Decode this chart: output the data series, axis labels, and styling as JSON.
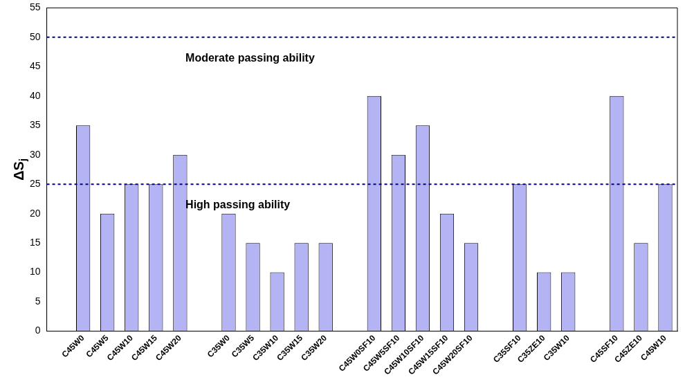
{
  "chart_data": {
    "type": "bar",
    "ylabel": "ΔS$_{j}$",
    "categories": [
      null,
      "C45W0",
      "C45W5",
      "C45W10",
      "C45W15",
      "C45W20",
      null,
      "C35W0",
      "C35W5",
      "C35W10",
      "C35W15",
      "C35W20",
      null,
      "C45W0SF10",
      "C45W5SF10",
      "C45W10SF10",
      "C45W15SF10",
      "C45W20SF10",
      null,
      "C35SF10",
      "C35ZE10",
      "C35W10",
      null,
      "C45SF10",
      "C45ZE10",
      "C45W10"
    ],
    "values": [
      null,
      35,
      20,
      25,
      25,
      30,
      null,
      20,
      15,
      10,
      15,
      15,
      null,
      40,
      30,
      35,
      20,
      15,
      null,
      25,
      10,
      10,
      null,
      40,
      15,
      25
    ],
    "color": "#b4b4f4",
    "ylim": [
      0,
      55
    ],
    "yticks": [
      0,
      5,
      10,
      15,
      20,
      25,
      30,
      35,
      40,
      45,
      50,
      55
    ],
    "grid": false,
    "legend": false,
    "ref_lines": [
      {
        "axis": "y",
        "value": 50,
        "label": "Moderate passing ability",
        "color": "#000080",
        "line_style": "dashed"
      },
      {
        "axis": "y",
        "value": 25,
        "label": "High passing ability",
        "color": "#000080",
        "line_style": "dashed"
      }
    ]
  }
}
